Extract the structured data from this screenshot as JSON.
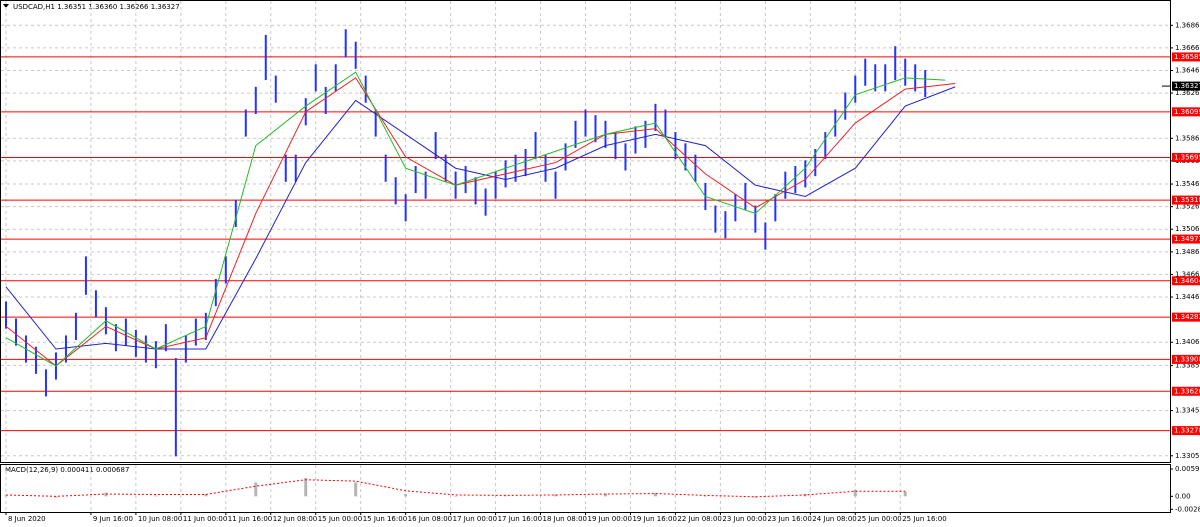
{
  "chart_data": {
    "type": "ohlc",
    "title": "USDCAD,H1  1.36351 1.36360 1.36266 1.36327",
    "color": "#2233ff",
    "x": [
      0,
      1,
      2,
      3,
      4,
      5,
      6,
      7,
      8,
      9,
      10,
      11,
      12,
      13,
      14,
      15,
      16,
      17,
      18,
      19,
      20,
      21,
      22,
      23,
      24,
      25,
      26,
      27,
      28,
      29,
      30,
      31,
      32,
      33,
      34,
      35,
      36,
      37,
      38,
      39,
      40,
      41,
      42,
      43,
      44,
      45,
      46,
      47,
      48,
      49,
      50,
      51,
      52,
      53,
      54,
      55,
      56,
      57,
      58,
      59,
      60,
      61,
      62,
      63,
      64,
      65,
      66,
      67,
      68,
      69,
      70,
      71,
      72,
      73,
      74,
      75,
      76,
      77,
      78,
      79,
      80,
      81,
      82,
      83,
      84,
      85,
      86,
      87,
      88,
      89,
      90,
      91,
      92
    ],
    "high": [
      1.3442,
      1.3427,
      1.3412,
      1.3402,
      1.3382,
      1.3397,
      1.3412,
      1.3432,
      1.3482,
      1.3452,
      1.3437,
      1.3422,
      1.3427,
      1.3417,
      1.3412,
      1.3407,
      1.3422,
      1.3392,
      1.3412,
      1.3427,
      1.3432,
      1.3462,
      1.3482,
      1.3532,
      1.3612,
      1.3632,
      1.3678,
      1.3642,
      1.3572,
      1.3572,
      1.3622,
      1.3652,
      1.3632,
      1.3652,
      1.3683,
      1.3672,
      1.3642,
      1.3612,
      1.3572,
      1.3552,
      1.3537,
      1.3562,
      1.3557,
      1.3592,
      1.3572,
      1.3557,
      1.3562,
      1.3552,
      1.3542,
      1.3557,
      1.3567,
      1.3572,
      1.3577,
      1.3592,
      1.3572,
      1.3557,
      1.3582,
      1.3602,
      1.3612,
      1.3607,
      1.3602,
      1.3592,
      1.3582,
      1.3597,
      1.3602,
      1.3617,
      1.3612,
      1.3592,
      1.3582,
      1.3572,
      1.3547,
      1.3527,
      1.3522,
      1.3537,
      1.3547,
      1.3527,
      1.3512,
      1.3537,
      1.3557,
      1.3562,
      1.3567,
      1.3577,
      1.3592,
      1.3612,
      1.3627,
      1.3642,
      1.3657,
      1.3652,
      1.3652,
      1.3668,
      1.3657,
      1.3652,
      1.3647
    ],
    "low": [
      1.3418,
      1.3403,
      1.3388,
      1.3378,
      1.3358,
      1.3373,
      1.3388,
      1.3408,
      1.3448,
      1.3428,
      1.3413,
      1.3398,
      1.3403,
      1.3393,
      1.3388,
      1.3383,
      1.3398,
      1.3305,
      1.3388,
      1.3403,
      1.3408,
      1.3438,
      1.3458,
      1.3508,
      1.3588,
      1.3608,
      1.3638,
      1.3618,
      1.3548,
      1.3548,
      1.3598,
      1.3628,
      1.3608,
      1.3628,
      1.3658,
      1.3648,
      1.3618,
      1.3588,
      1.3548,
      1.3528,
      1.3513,
      1.3538,
      1.3533,
      1.3568,
      1.3548,
      1.3533,
      1.3538,
      1.3528,
      1.3518,
      1.3533,
      1.3543,
      1.3548,
      1.3553,
      1.3568,
      1.3548,
      1.3533,
      1.3558,
      1.3578,
      1.3588,
      1.3583,
      1.3578,
      1.3568,
      1.3558,
      1.3573,
      1.3578,
      1.3593,
      1.3588,
      1.3568,
      1.3558,
      1.3548,
      1.3523,
      1.3503,
      1.3498,
      1.3513,
      1.3523,
      1.3503,
      1.3488,
      1.3513,
      1.3533,
      1.3538,
      1.3543,
      1.3553,
      1.3568,
      1.3588,
      1.3603,
      1.3618,
      1.3633,
      1.3628,
      1.3628,
      1.3638,
      1.3633,
      1.3628,
      1.3623
    ],
    "xlim": [
      -0.5,
      116.5
    ],
    "xticks": [
      {
        "value": 0,
        "label": "8 Jun 2020"
      },
      {
        "value": 8.5,
        "label": "9 Jun 16:00"
      },
      {
        "value": 13,
        "label": "10 Jun 08:00"
      },
      {
        "value": 17.5,
        "label": "11 Jun 00:00"
      },
      {
        "value": 22,
        "label": "11 Jun 16:00"
      },
      {
        "value": 26.5,
        "label": "12 Jun 08:00"
      },
      {
        "value": 31,
        "label": "15 Jun 00:00"
      },
      {
        "value": 35.5,
        "label": "15 Jun 16:00"
      },
      {
        "value": 40,
        "label": "16 Jun 08:00"
      },
      {
        "value": 44.5,
        "label": "17 Jun 00:00"
      },
      {
        "value": 49,
        "label": "17 Jun 16:00"
      },
      {
        "value": 53.5,
        "label": "18 Jun 08:00"
      },
      {
        "value": 58,
        "label": "19 Jun 00:00"
      },
      {
        "value": 62.5,
        "label": "19 Jun 16:00"
      },
      {
        "value": 67,
        "label": "22 Jun 08:00"
      },
      {
        "value": 71.5,
        "label": "23 Jun 00:00"
      },
      {
        "value": 76,
        "label": "23 Jun 16:00"
      },
      {
        "value": 80.5,
        "label": "24 Jun 08:00"
      },
      {
        "value": 85,
        "label": "25 Jun 00:00"
      },
      {
        "value": 89.5,
        "label": "25 Jun 16:00"
      }
    ],
    "ylim": [
      1.33,
      1.3708
    ],
    "yticks": [
      1.36865,
      1.36665,
      1.36465,
      1.36265,
      1.35865,
      1.35665,
      1.3546,
      {
        "value": 1.3526,
        "label": "1.35260"
      },
      {
        "value": 1.3506,
        "label": "1.35060"
      },
      {
        "value": 1.3486,
        "label": "1.34860"
      },
      {
        "value": 1.3466,
        "label": "1.34660"
      },
      {
        "value": 1.3446,
        "label": "1.34460"
      },
      {
        "value": 1.3406,
        "label": "1.34060"
      },
      1.33855,
      1.33455,
      1.33055
    ],
    "grid": true,
    "levels": {
      "color": "#ff0000",
      "values": [
        1.36585,
        1.36099,
        1.35695,
        1.35318,
        1.34973,
        1.34604,
        1.34282,
        1.33908,
        1.33626,
        1.33278
      ]
    },
    "last_price": 1.36327,
    "moving_averages": [
      {
        "color": "#2222cc",
        "x": [
          0,
          5,
          10,
          15,
          20,
          25,
          30,
          35,
          40,
          45,
          50,
          55,
          60,
          65,
          70,
          75,
          80,
          85,
          90,
          95
        ],
        "values": [
          1.3455,
          1.34,
          1.3405,
          1.34,
          1.34,
          1.348,
          1.3565,
          1.362,
          1.359,
          1.356,
          1.355,
          1.356,
          1.358,
          1.359,
          1.358,
          1.3545,
          1.3535,
          1.356,
          1.3615,
          1.3632
        ]
      },
      {
        "color": "#ee2222",
        "x": [
          0,
          5,
          10,
          15,
          20,
          25,
          30,
          35,
          40,
          45,
          50,
          55,
          60,
          65,
          70,
          75,
          80,
          85,
          90,
          95
        ],
        "values": [
          1.342,
          1.3385,
          1.342,
          1.34,
          1.341,
          1.352,
          1.361,
          1.364,
          1.357,
          1.3545,
          1.3555,
          1.3565,
          1.359,
          1.3595,
          1.3555,
          1.3525,
          1.355,
          1.36,
          1.363,
          1.3635
        ]
      },
      {
        "color": "#22bb22",
        "x": [
          0,
          5,
          10,
          15,
          20,
          25,
          30,
          35,
          40,
          45,
          50,
          55,
          60,
          65,
          70,
          75,
          80,
          85,
          90,
          94
        ],
        "values": [
          1.341,
          1.3385,
          1.3425,
          1.34,
          1.342,
          1.358,
          1.3615,
          1.3645,
          1.356,
          1.3545,
          1.356,
          1.3575,
          1.359,
          1.36,
          1.3535,
          1.352,
          1.356,
          1.3625,
          1.364,
          1.3638
        ]
      }
    ],
    "macd": {
      "title": "MACD(12,26,9) 0.000411 0.000687",
      "ylim": [
        -0.0034,
        0.0068
      ],
      "yticks": [
        0.005933,
        {
          "value": 0,
          "label": "0.00"
        },
        -0.002814
      ],
      "x": [
        0,
        5,
        10,
        15,
        20,
        25,
        30,
        35,
        40,
        45,
        50,
        55,
        60,
        65,
        70,
        75,
        80,
        85,
        90
      ],
      "histogram": [
        0.0002,
        -0.0003,
        0.0008,
        0.0002,
        0.0005,
        0.003,
        0.004,
        0.003,
        0.0005,
        0,
        0.0002,
        0.0004,
        0.0006,
        0.0007,
        0,
        -0.0003,
        0.0005,
        0.0014,
        0.001
      ],
      "histogram_color": "#b4b4b4",
      "signal": [
        0.0003,
        0,
        0.0005,
        0.0004,
        0.0004,
        0.0022,
        0.0036,
        0.0033,
        0.0012,
        0.0003,
        0.0002,
        0.0003,
        0.0005,
        0.0006,
        0.0002,
        -0.0001,
        0.0003,
        0.0011,
        0.0011
      ],
      "signal_color": "#ff0000"
    }
  }
}
